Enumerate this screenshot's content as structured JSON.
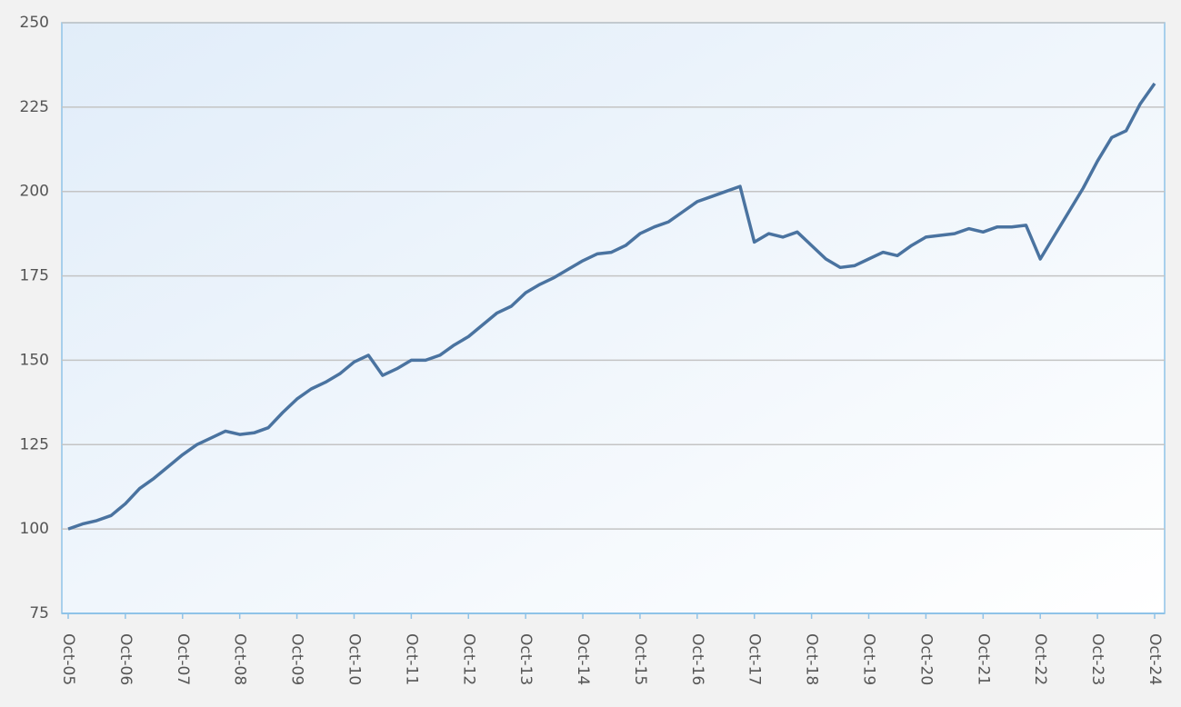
{
  "chart_data": {
    "type": "line",
    "categories": [
      "Oct-05",
      null,
      null,
      null,
      "Oct-06",
      null,
      null,
      null,
      "Oct-07",
      null,
      null,
      null,
      "Oct-08",
      null,
      null,
      null,
      "Oct-09",
      null,
      null,
      null,
      "Oct-10",
      null,
      null,
      null,
      "Oct-11",
      null,
      null,
      null,
      "Oct-12",
      null,
      null,
      null,
      "Oct-13",
      null,
      null,
      null,
      "Oct-14",
      null,
      null,
      null,
      "Oct-15",
      null,
      null,
      null,
      "Oct-16",
      null,
      null,
      null,
      "Oct-17",
      null,
      null,
      null,
      "Oct-18",
      null,
      null,
      null,
      "Oct-19",
      null,
      null,
      null,
      "Oct-20",
      null,
      null,
      null,
      "Oct-21",
      null,
      null,
      null,
      "Oct-22",
      null,
      null,
      null,
      "Oct-23",
      null,
      null,
      null,
      "Oct-24"
    ],
    "series": [
      {
        "color": "#4a73a0",
        "values": [
          100,
          101.5,
          102.5,
          104,
          107.5,
          112,
          115,
          118.5,
          122,
          125,
          127,
          129,
          128,
          128.5,
          130,
          134.5,
          138.5,
          141.5,
          143.5,
          146,
          149.5,
          151.5,
          145.5,
          147.5,
          150,
          150,
          151.5,
          154.5,
          157,
          160.5,
          164,
          166,
          170,
          172.5,
          174.5,
          177,
          179.5,
          181.5,
          182,
          184,
          187.5,
          189.5,
          191,
          194,
          197,
          198.5,
          200,
          201.5,
          185,
          187.5,
          186.5,
          188,
          184,
          180,
          177.5,
          178,
          180,
          182,
          181,
          184,
          186.5,
          187,
          187.5,
          189,
          188,
          189.5,
          189.5,
          190,
          180,
          187,
          194,
          201,
          209,
          216,
          218,
          226,
          232
        ]
      }
    ],
    "ylim": [
      75,
      250
    ],
    "yticks": [
      75,
      100,
      125,
      150,
      175,
      200,
      225,
      250
    ],
    "grid": true
  }
}
